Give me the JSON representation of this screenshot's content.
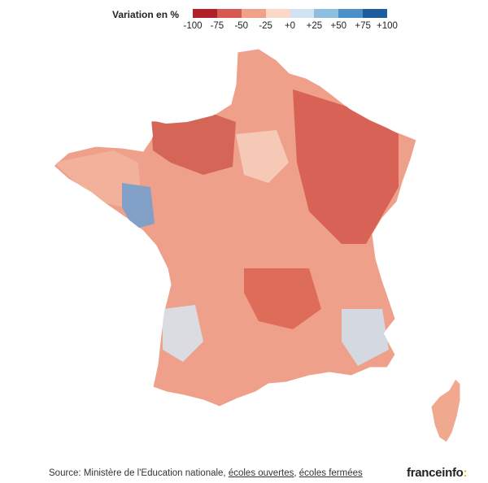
{
  "legend": {
    "title": "Variation en %",
    "ticks": [
      "-100",
      "-75",
      "-50",
      "-25",
      "+0",
      "+25",
      "+50",
      "+75",
      "+100"
    ],
    "colors": [
      "#b2202a",
      "#d65a4f",
      "#f0a187",
      "#fbd8c7",
      "#cfe3f0",
      "#8fbfe0",
      "#4d8fc8",
      "#1f5c9e"
    ]
  },
  "map": {
    "regions": {
      "france": {
        "level": -35,
        "fill": "#eea08a"
      },
      "corsica": {
        "level": -30,
        "fill": "#f0a98f"
      }
    },
    "hotspots": [
      {
        "name": "normandy",
        "fill": "#cf5a4e"
      },
      {
        "name": "grand-est",
        "fill": "#d2574b"
      },
      {
        "name": "ile-de-france",
        "fill": "#f7cfbd"
      },
      {
        "name": "brittany-west",
        "fill": "#f1b49c"
      },
      {
        "name": "massif-central",
        "fill": "#d9634f"
      },
      {
        "name": "southwest-light",
        "fill": "#d6e6f1"
      },
      {
        "name": "alps-light",
        "fill": "#cfe3f0"
      },
      {
        "name": "loire-atlantique",
        "fill": "#6f9fd0"
      }
    ]
  },
  "source": {
    "prefix": "Source: Ministère de l'Education nationale, ",
    "link1": "écoles ouvertes",
    "separator": ", ",
    "link2": "écoles fermées"
  },
  "brand": {
    "name": "franceinfo",
    "accent": ":"
  }
}
